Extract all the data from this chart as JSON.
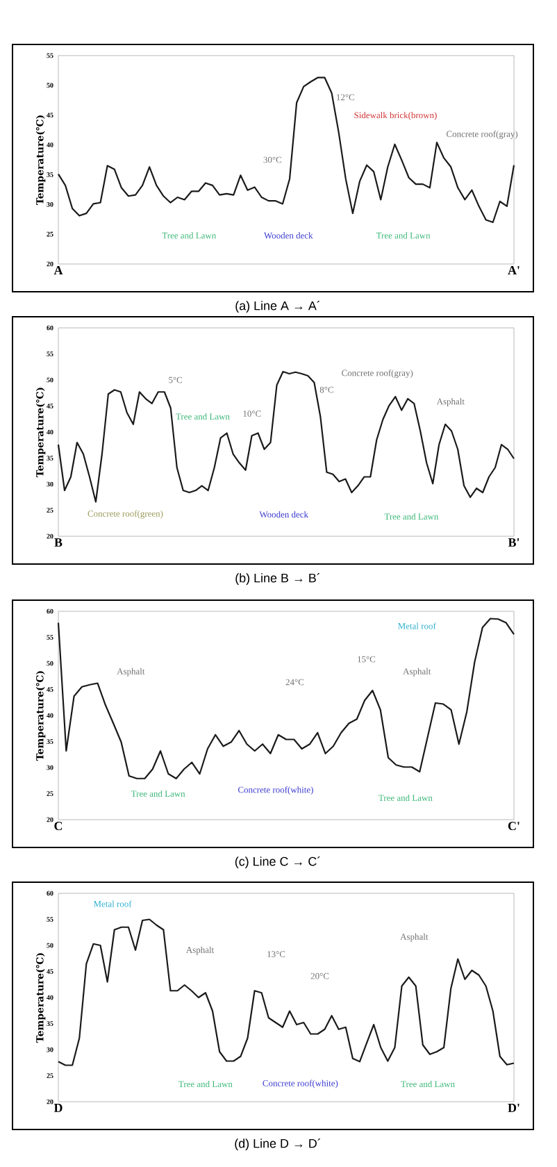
{
  "chart_data": [
    {
      "type": "line",
      "title": "(a)  Line A → A´",
      "ylabel": "Temperature(℃)",
      "color": "#1a1a1a",
      "categories": [
        "A",
        null,
        null,
        null,
        null,
        null,
        null,
        null,
        null,
        null,
        null,
        null,
        null,
        null,
        null,
        null,
        null,
        null,
        null,
        null,
        null,
        null,
        null,
        null,
        null,
        null,
        null,
        null,
        null,
        null,
        null,
        null,
        null,
        null,
        null,
        null,
        null,
        null,
        null,
        null,
        null,
        null,
        null,
        null,
        null,
        null,
        null,
        null,
        null,
        null,
        null,
        null,
        null,
        null,
        null,
        null,
        null,
        null,
        null,
        null,
        null,
        null,
        null,
        null,
        null,
        "A'"
      ],
      "values": [
        35.1,
        33.2,
        29.3,
        28.1,
        28.5,
        30.1,
        30.3,
        36.5,
        35.9,
        32.8,
        31.4,
        31.6,
        33.2,
        36.3,
        33.2,
        31.4,
        30.3,
        31.2,
        30.8,
        32.2,
        32.2,
        33.6,
        33.2,
        31.6,
        31.8,
        31.6,
        34.9,
        32.4,
        32.9,
        31.2,
        30.6,
        30.6,
        30.1,
        34.3,
        47.1,
        49.8,
        50.6,
        51.3,
        51.3,
        48.7,
        42.1,
        34.3,
        28.5,
        33.9,
        36.6,
        35.5,
        30.8,
        36.3,
        40.1,
        37.4,
        34.5,
        33.4,
        33.4,
        32.8,
        40.4,
        37.8,
        36.3,
        32.8,
        30.8,
        32.4,
        29.7,
        27.4,
        27.0,
        30.5,
        29.7,
        36.6
      ],
      "ylim": [
        20,
        55
      ],
      "yticks": [
        20,
        25,
        30,
        35,
        40,
        45,
        50,
        55
      ],
      "annotations": [
        "Tree and Lawn",
        "Wooden deck",
        "12°C",
        "30°C",
        "Sidewalk brick(brown)",
        "Concrete roof(gray)",
        "Tree and Lawn"
      ]
    },
    {
      "type": "line",
      "title": "(b)  Line B → B´",
      "ylabel": "Temperature(℃)",
      "color": "#1a1a1a",
      "categories": [
        "B",
        null,
        null,
        null,
        null,
        null,
        null,
        null,
        null,
        null,
        null,
        null,
        null,
        null,
        null,
        null,
        null,
        null,
        null,
        null,
        null,
        null,
        null,
        null,
        null,
        null,
        null,
        null,
        null,
        null,
        null,
        null,
        null,
        null,
        null,
        null,
        null,
        null,
        null,
        null,
        null,
        null,
        null,
        null,
        null,
        null,
        null,
        null,
        null,
        null,
        null,
        null,
        null,
        null,
        null,
        null,
        null,
        null,
        null,
        null,
        null,
        null,
        null,
        null,
        null,
        null,
        null,
        null,
        null,
        null,
        null,
        null,
        null,
        "B'"
      ],
      "values": [
        37.6,
        28.8,
        31.4,
        38.0,
        35.8,
        31.4,
        26.6,
        35.8,
        47.3,
        48.1,
        47.7,
        43.7,
        41.5,
        47.7,
        46.4,
        45.5,
        47.7,
        47.7,
        44.6,
        33.2,
        28.8,
        28.4,
        28.8,
        29.7,
        28.8,
        33.2,
        38.9,
        39.8,
        35.8,
        34.1,
        32.7,
        39.3,
        39.8,
        36.7,
        38.0,
        49.0,
        51.6,
        51.2,
        51.5,
        51.2,
        50.8,
        49.5,
        42.9,
        32.3,
        31.9,
        30.5,
        31.0,
        28.4,
        29.7,
        31.4,
        31.4,
        38.5,
        42.4,
        45.1,
        46.8,
        44.2,
        46.4,
        45.5,
        40.2,
        34.1,
        30.1,
        37.6,
        41.5,
        40.2,
        36.7,
        29.7,
        27.5,
        29.2,
        28.4,
        31.4,
        33.2,
        37.6,
        36.7,
        34.9
      ],
      "ylim": [
        20,
        60
      ],
      "yticks": [
        20,
        25,
        30,
        35,
        40,
        45,
        50,
        55,
        60
      ],
      "annotations": [
        "Concrete roof(green)",
        "Wooden deck",
        "5°C",
        "Tree and Lawn",
        "Concrete roof(gray)",
        "8°C",
        "10°C",
        "Asphalt",
        "Tree and Lawn"
      ]
    },
    {
      "type": "line",
      "title": "(c)  Line C → C´",
      "ylabel": "Temperature(℃)",
      "color": "#1a1a1a",
      "categories": [
        "C",
        null,
        null,
        null,
        null,
        null,
        null,
        null,
        null,
        null,
        null,
        null,
        null,
        null,
        null,
        null,
        null,
        null,
        null,
        null,
        null,
        null,
        null,
        null,
        null,
        null,
        null,
        null,
        null,
        null,
        null,
        null,
        null,
        null,
        null,
        null,
        null,
        null,
        null,
        null,
        null,
        null,
        null,
        null,
        null,
        null,
        null,
        null,
        null,
        null,
        null,
        null,
        null,
        null,
        null,
        null,
        null,
        null,
        "C'"
      ],
      "values": [
        57.8,
        33.2,
        43.7,
        45.5,
        45.9,
        46.2,
        42.0,
        38.5,
        34.9,
        28.4,
        27.9,
        27.9,
        29.7,
        33.2,
        28.8,
        27.9,
        29.7,
        31.0,
        28.8,
        33.6,
        36.3,
        34.1,
        34.9,
        37.1,
        34.5,
        33.2,
        34.5,
        32.7,
        36.3,
        35.4,
        35.4,
        33.6,
        34.5,
        36.7,
        32.7,
        34.1,
        36.7,
        38.5,
        39.3,
        42.9,
        44.8,
        41.1,
        31.9,
        30.5,
        30.1,
        30.1,
        29.2,
        35.8,
        42.4,
        42.2,
        41.1,
        34.5,
        40.7,
        50.3,
        56.9,
        58.6,
        58.5,
        57.8,
        55.6
      ],
      "ylim": [
        20,
        60
      ],
      "yticks": [
        20,
        25,
        30,
        35,
        40,
        45,
        50,
        55,
        60
      ],
      "annotations": [
        "Tree and Lawn",
        "Concrete roof(white)",
        "Tree and Lawn",
        "Asphalt",
        "24°C",
        "15°C",
        "Asphalt",
        "Metal roof"
      ]
    },
    {
      "type": "line",
      "title": "(d)  Line D → D´",
      "ylabel": "Temperature(℃)",
      "color": "#1a1a1a",
      "categories": [
        "D",
        null,
        null,
        null,
        null,
        null,
        null,
        null,
        null,
        null,
        null,
        null,
        null,
        null,
        null,
        null,
        null,
        null,
        null,
        null,
        null,
        null,
        null,
        null,
        null,
        null,
        null,
        null,
        null,
        null,
        null,
        null,
        null,
        null,
        null,
        null,
        null,
        null,
        null,
        null,
        null,
        null,
        null,
        null,
        null,
        null,
        null,
        null,
        null,
        null,
        null,
        null,
        null,
        null,
        null,
        null,
        null,
        null,
        null,
        null,
        null,
        null,
        null,
        null,
        null,
        "D'"
      ],
      "values": [
        27.7,
        27.0,
        27.0,
        32.2,
        46.5,
        50.3,
        50.0,
        43.0,
        53.0,
        53.5,
        53.5,
        49.1,
        54.8,
        55.0,
        53.9,
        53.0,
        41.3,
        41.3,
        42.4,
        41.3,
        40.0,
        40.9,
        37.4,
        29.6,
        27.8,
        27.8,
        28.7,
        32.2,
        41.3,
        40.9,
        36.1,
        35.2,
        34.3,
        37.4,
        34.8,
        35.2,
        33.0,
        33.0,
        33.9,
        36.5,
        33.9,
        34.3,
        28.3,
        27.7,
        31.3,
        34.8,
        30.4,
        27.8,
        30.4,
        42.2,
        43.9,
        42.2,
        30.9,
        29.1,
        29.6,
        30.4,
        41.7,
        47.4,
        43.5,
        45.2,
        44.3,
        42.2,
        37.4,
        28.7,
        27.1,
        27.4
      ],
      "ylim": [
        20,
        60
      ],
      "yticks": [
        20,
        25,
        30,
        35,
        40,
        45,
        50,
        55,
        60
      ],
      "annotations": [
        "Metal roof",
        "Asphalt",
        "Tree and Lawn",
        "Concrete roof(white)",
        "13°C",
        "20°C",
        "Asphalt",
        "Tree and Lawn"
      ]
    }
  ]
}
